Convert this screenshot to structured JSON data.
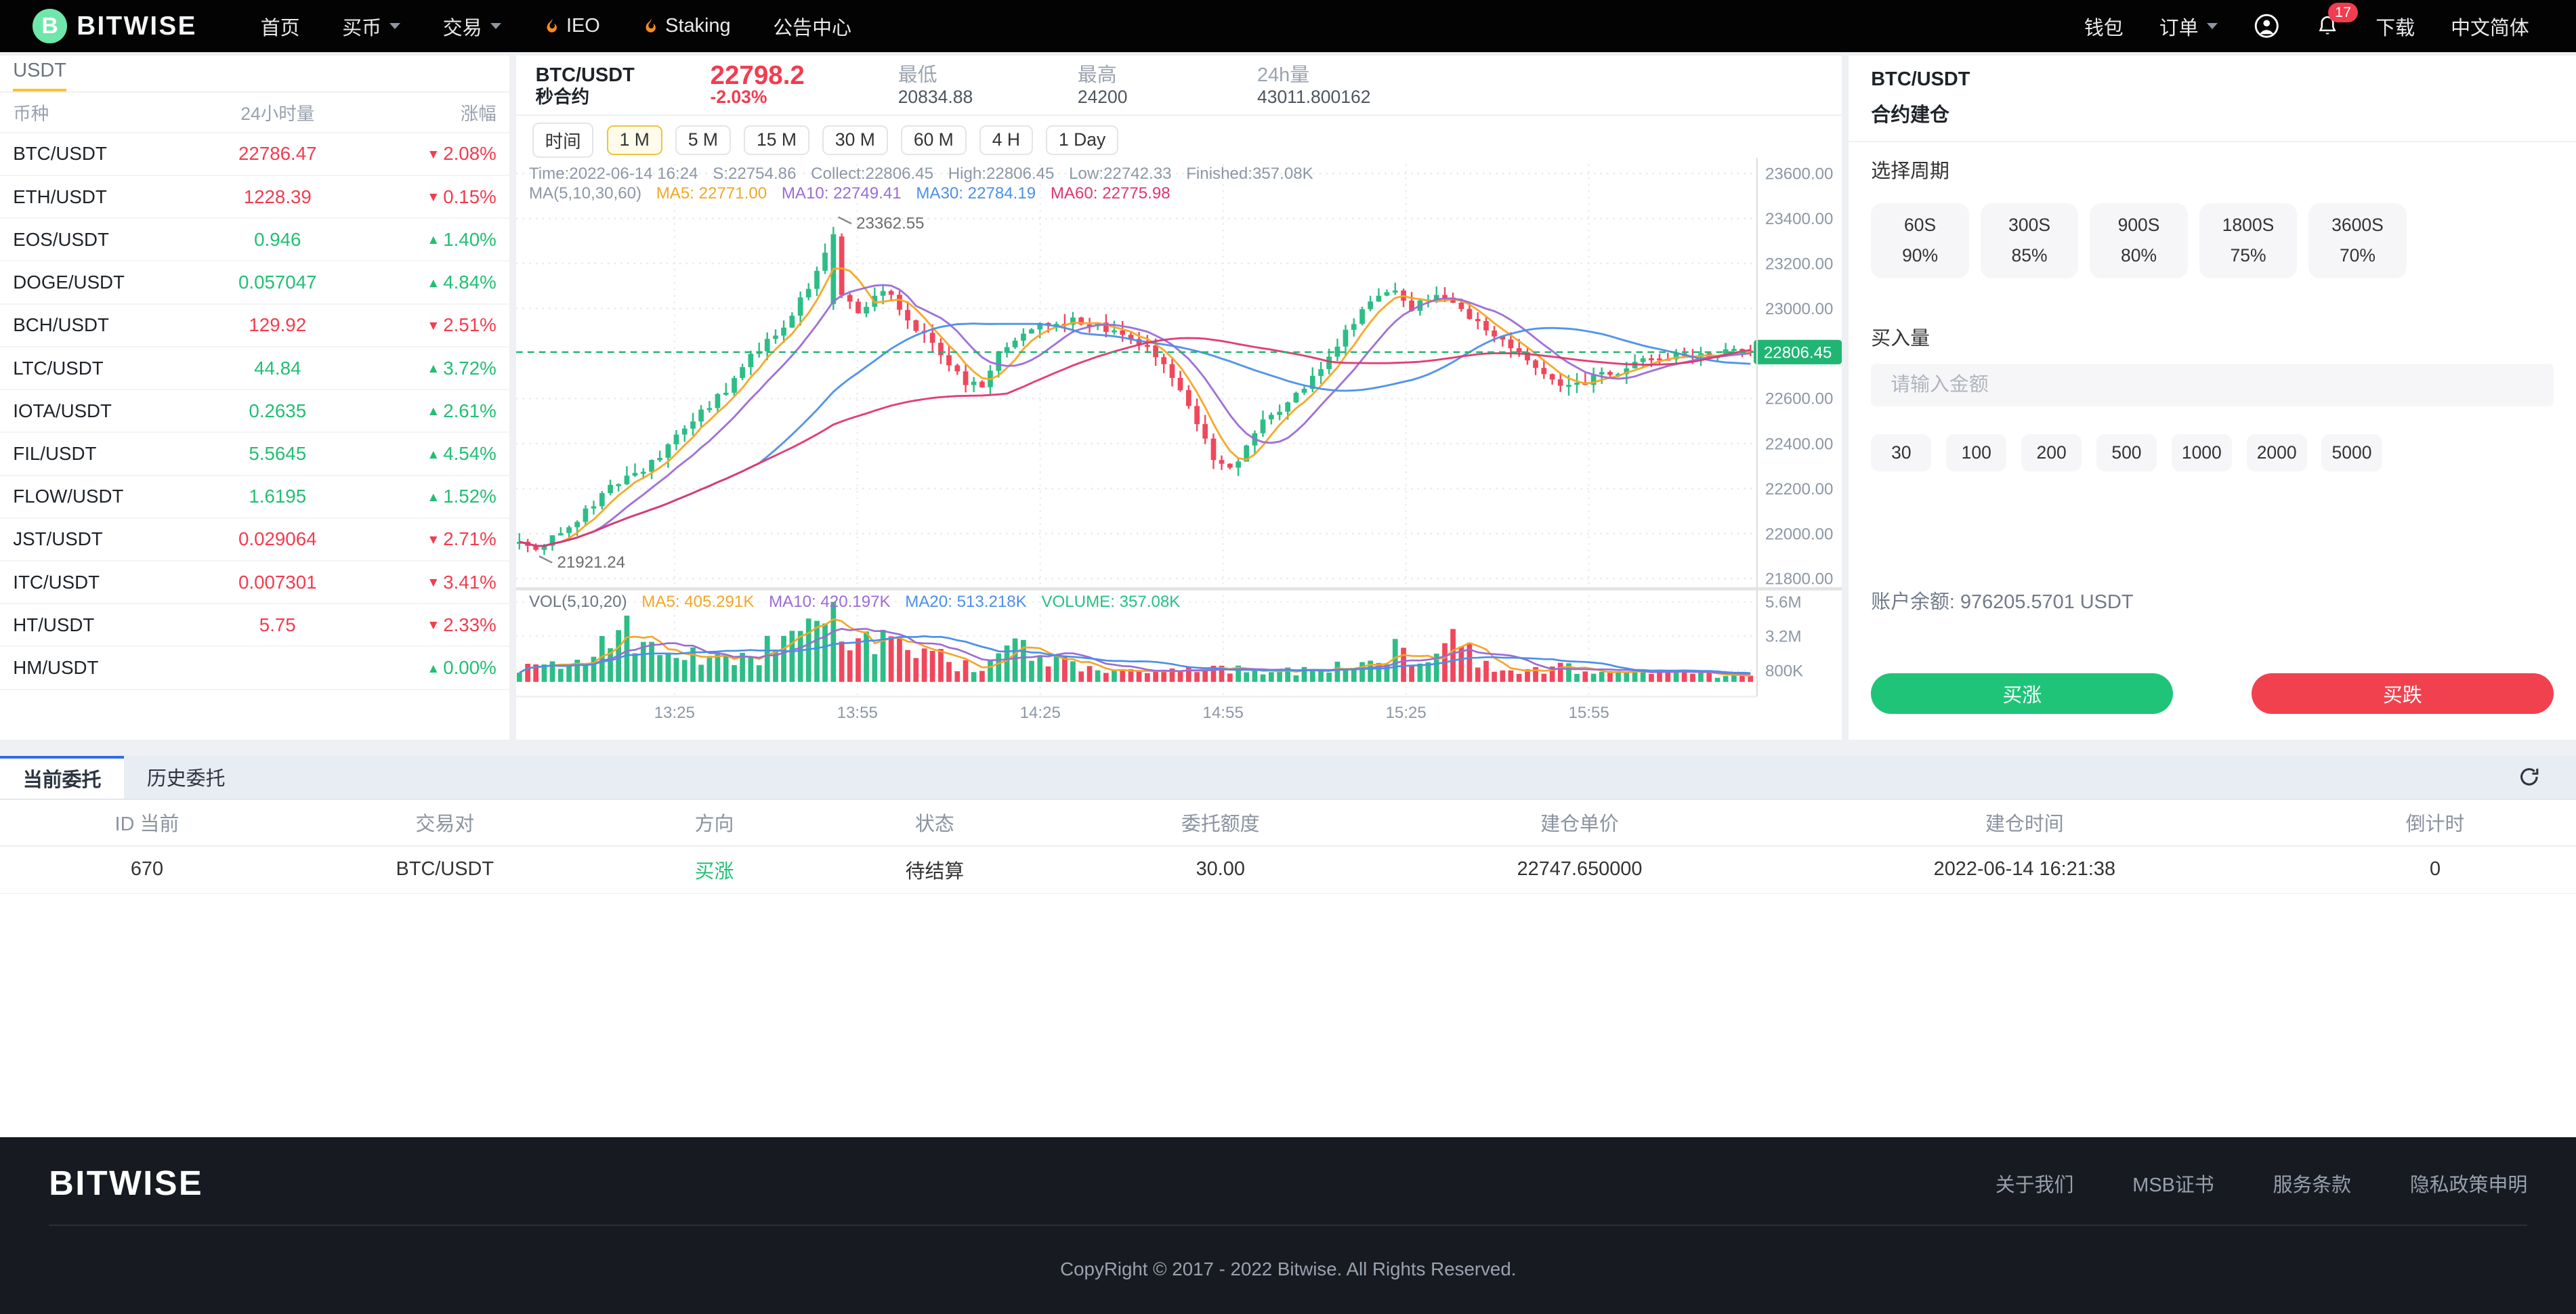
{
  "navbar": {
    "brand": "BITWISE",
    "left_items": [
      {
        "label": "首页"
      },
      {
        "label": "买币",
        "caret": true
      },
      {
        "label": "交易",
        "caret": true
      },
      {
        "label": "IEO",
        "flame": true
      },
      {
        "label": "Staking",
        "flame": true
      },
      {
        "label": "公告中心"
      }
    ],
    "right_items": [
      {
        "label": "钱包"
      },
      {
        "label": "订单",
        "caret": true
      },
      {
        "icon": "user"
      },
      {
        "icon": "bell",
        "badge": "17"
      },
      {
        "label": "下载"
      },
      {
        "label": "中文简体"
      }
    ]
  },
  "sidebar": {
    "tab": "USDT",
    "headers": [
      "币种",
      "24小时量",
      "涨幅"
    ],
    "rows": [
      {
        "pair": "BTC/USDT",
        "vol": "22786.47",
        "vol_dir": "down",
        "change": "2.08%",
        "dir": "down"
      },
      {
        "pair": "ETH/USDT",
        "vol": "1228.39",
        "vol_dir": "down",
        "change": "0.15%",
        "dir": "down"
      },
      {
        "pair": "EOS/USDT",
        "vol": "0.946",
        "vol_dir": "up",
        "change": "1.40%",
        "dir": "up"
      },
      {
        "pair": "DOGE/USDT",
        "vol": "0.057047",
        "vol_dir": "up",
        "change": "4.84%",
        "dir": "up"
      },
      {
        "pair": "BCH/USDT",
        "vol": "129.92",
        "vol_dir": "down",
        "change": "2.51%",
        "dir": "down"
      },
      {
        "pair": "LTC/USDT",
        "vol": "44.84",
        "vol_dir": "up",
        "change": "3.72%",
        "dir": "up"
      },
      {
        "pair": "IOTA/USDT",
        "vol": "0.2635",
        "vol_dir": "up",
        "change": "2.61%",
        "dir": "up"
      },
      {
        "pair": "FIL/USDT",
        "vol": "5.5645",
        "vol_dir": "up",
        "change": "4.54%",
        "dir": "up"
      },
      {
        "pair": "FLOW/USDT",
        "vol": "1.6195",
        "vol_dir": "up",
        "change": "1.52%",
        "dir": "up"
      },
      {
        "pair": "JST/USDT",
        "vol": "0.029064",
        "vol_dir": "down",
        "change": "2.71%",
        "dir": "down"
      },
      {
        "pair": "ITC/USDT",
        "vol": "0.007301",
        "vol_dir": "down",
        "change": "3.41%",
        "dir": "down"
      },
      {
        "pair": "HT/USDT",
        "vol": "5.75",
        "vol_dir": "down",
        "change": "2.33%",
        "dir": "down"
      },
      {
        "pair": "HM/USDT",
        "vol": "",
        "vol_dir": "up",
        "change": "0.00%",
        "dir": "up"
      }
    ]
  },
  "chart": {
    "pair": "BTC/USDT",
    "type_label": "秒合约",
    "price": "22798.2",
    "change": "-2.03%",
    "low_label": "最低",
    "low": "20834.88",
    "high_label": "最高",
    "high": "24200",
    "vol_label": "24h量",
    "vol": "43011.800162",
    "toolbar_label": "时间",
    "intervals": [
      "1 M",
      "5 M",
      "15 M",
      "30 M",
      "60 M",
      "4 H",
      "1 Day"
    ],
    "active_interval": 0,
    "info_items": [
      "Time:2022-06-14 16:24",
      "S:22754.86",
      "Collect:22806.45",
      "High:22806.45",
      "Low:22742.33",
      "Finished:357.08K"
    ],
    "ma_label": "MA(5,10,30,60)",
    "ma_items": [
      {
        "label": "MA5: 22771.00",
        "color": "#f5a623"
      },
      {
        "label": "MA10: 22749.41",
        "color": "#9b6bd6"
      },
      {
        "label": "MA30: 22784.19",
        "color": "#4a8fe8"
      },
      {
        "label": "MA60: 22775.98",
        "color": "#e0366e"
      }
    ],
    "vol_legend": [
      {
        "label": "VOL(5,10,20)",
        "color": "#6b7480"
      },
      {
        "label": "MA5: 405.291K",
        "color": "#f5a623"
      },
      {
        "label": "MA10: 420.197K",
        "color": "#9b6bd6"
      },
      {
        "label": "MA20: 513.218K",
        "color": "#4a8fe8"
      },
      {
        "label": "VOLUME: 357.08K",
        "color": "#27c087"
      }
    ]
  },
  "chart_data": {
    "type": "candlestick+volume",
    "title": "BTC/USDT 秒合约 1M",
    "y_ticks": [
      "23600.00",
      "23400.00",
      "23200.00",
      "23000.00",
      "22800.00",
      "22600.00",
      "22400.00",
      "22200.00",
      "22000.00",
      "21800.00"
    ],
    "y_range": [
      21800,
      23600
    ],
    "vol_ticks": [
      "5.6M",
      "3.2M",
      "800K"
    ],
    "x_ticks": [
      "13:25",
      "13:55",
      "14:25",
      "14:55",
      "15:25",
      "15:55"
    ],
    "current_price": "22806.45",
    "current_price_value": 22806.45,
    "annotation_high": "23362.55",
    "annotation_low": "21921.24",
    "candle_count": 150,
    "price_keypoints": [
      [
        0,
        21960
      ],
      [
        0.015,
        21925
      ],
      [
        0.03,
        22005
      ],
      [
        0.05,
        22080
      ],
      [
        0.07,
        22190
      ],
      [
        0.09,
        22260
      ],
      [
        0.11,
        22320
      ],
      [
        0.13,
        22440
      ],
      [
        0.15,
        22550
      ],
      [
        0.17,
        22650
      ],
      [
        0.19,
        22800
      ],
      [
        0.21,
        22900
      ],
      [
        0.225,
        23000
      ],
      [
        0.24,
        23150
      ],
      [
        0.252,
        23300
      ],
      [
        0.262,
        23150
      ],
      [
        0.272,
        22980
      ],
      [
        0.285,
        23030
      ],
      [
        0.3,
        23080
      ],
      [
        0.315,
        22950
      ],
      [
        0.33,
        22880
      ],
      [
        0.345,
        22780
      ],
      [
        0.36,
        22680
      ],
      [
        0.375,
        22650
      ],
      [
        0.39,
        22800
      ],
      [
        0.41,
        22900
      ],
      [
        0.43,
        22930
      ],
      [
        0.45,
        22950
      ],
      [
        0.47,
        22920
      ],
      [
        0.49,
        22870
      ],
      [
        0.51,
        22820
      ],
      [
        0.53,
        22700
      ],
      [
        0.55,
        22480
      ],
      [
        0.565,
        22330
      ],
      [
        0.578,
        22290
      ],
      [
        0.59,
        22380
      ],
      [
        0.605,
        22500
      ],
      [
        0.62,
        22560
      ],
      [
        0.635,
        22630
      ],
      [
        0.65,
        22740
      ],
      [
        0.665,
        22850
      ],
      [
        0.68,
        22960
      ],
      [
        0.695,
        23050
      ],
      [
        0.71,
        23080
      ],
      [
        0.725,
        23000
      ],
      [
        0.74,
        23040
      ],
      [
        0.755,
        23050
      ],
      [
        0.77,
        22980
      ],
      [
        0.785,
        22900
      ],
      [
        0.8,
        22850
      ],
      [
        0.815,
        22790
      ],
      [
        0.83,
        22700
      ],
      [
        0.845,
        22650
      ],
      [
        0.86,
        22660
      ],
      [
        0.875,
        22700
      ],
      [
        0.89,
        22720
      ],
      [
        0.905,
        22750
      ],
      [
        0.92,
        22780
      ],
      [
        0.94,
        22790
      ],
      [
        0.96,
        22800
      ],
      [
        0.98,
        22810
      ],
      [
        1,
        22806
      ]
    ],
    "volume_keypoints": [
      [
        0,
        0.9
      ],
      [
        0.04,
        1.2
      ],
      [
        0.07,
        2.8
      ],
      [
        0.09,
        3.4
      ],
      [
        0.11,
        1.8
      ],
      [
        0.13,
        2.0
      ],
      [
        0.15,
        1.4
      ],
      [
        0.17,
        1.6
      ],
      [
        0.2,
        2.2
      ],
      [
        0.225,
        5.2
      ],
      [
        0.245,
        4.6
      ],
      [
        0.26,
        2.4
      ],
      [
        0.28,
        3.0
      ],
      [
        0.3,
        2.6
      ],
      [
        0.32,
        1.6
      ],
      [
        0.34,
        2.1
      ],
      [
        0.36,
        1.1
      ],
      [
        0.38,
        0.9
      ],
      [
        0.4,
        3.2
      ],
      [
        0.42,
        1.9
      ],
      [
        0.44,
        1.7
      ],
      [
        0.46,
        1.1
      ],
      [
        0.48,
        0.8
      ],
      [
        0.5,
        0.7
      ],
      [
        0.52,
        0.8
      ],
      [
        0.54,
        0.9
      ],
      [
        0.56,
        1.0
      ],
      [
        0.58,
        0.9
      ],
      [
        0.6,
        0.8
      ],
      [
        0.62,
        0.9
      ],
      [
        0.64,
        0.7
      ],
      [
        0.66,
        1.0
      ],
      [
        0.68,
        1.3
      ],
      [
        0.7,
        0.9
      ],
      [
        0.715,
        2.7
      ],
      [
        0.73,
        1.1
      ],
      [
        0.745,
        2.7
      ],
      [
        0.76,
        2.8
      ],
      [
        0.775,
        1.8
      ],
      [
        0.79,
        1.3
      ],
      [
        0.805,
        1.0
      ],
      [
        0.82,
        0.9
      ],
      [
        0.84,
        1.1
      ],
      [
        0.86,
        0.8
      ],
      [
        0.88,
        0.6
      ],
      [
        0.9,
        0.7
      ],
      [
        0.92,
        0.5
      ],
      [
        0.94,
        0.6
      ],
      [
        0.96,
        0.5
      ],
      [
        0.98,
        0.45
      ],
      [
        1,
        0.4
      ]
    ]
  },
  "panel": {
    "pair": "BTC/USDT",
    "title": "合约建仓",
    "period_label": "选择周期",
    "periods": [
      {
        "sec": "60S",
        "pct": "90%"
      },
      {
        "sec": "300S",
        "pct": "85%"
      },
      {
        "sec": "900S",
        "pct": "80%"
      },
      {
        "sec": "1800S",
        "pct": "75%"
      },
      {
        "sec": "3600S",
        "pct": "70%"
      }
    ],
    "amount_label": "买入量",
    "input_placeholder": "请输入金额",
    "amounts": [
      "30",
      "100",
      "200",
      "500",
      "1000",
      "2000",
      "5000"
    ],
    "balance_label": "账户余额:",
    "balance": "976205.5701 USDT",
    "buy_up": "买涨",
    "buy_down": "买跌"
  },
  "orders": {
    "tabs": [
      "当前委托",
      "历史委托"
    ],
    "active_tab": 0,
    "headers": [
      "ID 当前",
      "交易对",
      "方向",
      "状态",
      "委托额度",
      "建仓单价",
      "建仓时间",
      "倒计时"
    ],
    "rows": [
      {
        "id": "670",
        "pair": "BTC/USDT",
        "direction": "买涨",
        "direction_dir": "up",
        "status": "待结算",
        "amount": "30.00",
        "open_price": "22747.650000",
        "open_time": "2022-06-14 16:21:38",
        "countdown": "0"
      }
    ]
  },
  "footer": {
    "brand": "BITWISE",
    "links": [
      "关于我们",
      "MSB证书",
      "服务条款",
      "隐私政策申明"
    ],
    "copyright": "CopyRight © 2017 - 2022 Bitwise. All Rights Reserved."
  },
  "colors": {
    "up": "#21bf73",
    "down": "#f23c4f",
    "candle_up": "#2dbd86",
    "candle_down": "#f0475c",
    "price_tag": "#21b573",
    "accent_yellow": "#f7c52d",
    "tab_blue": "#2e6be6"
  }
}
